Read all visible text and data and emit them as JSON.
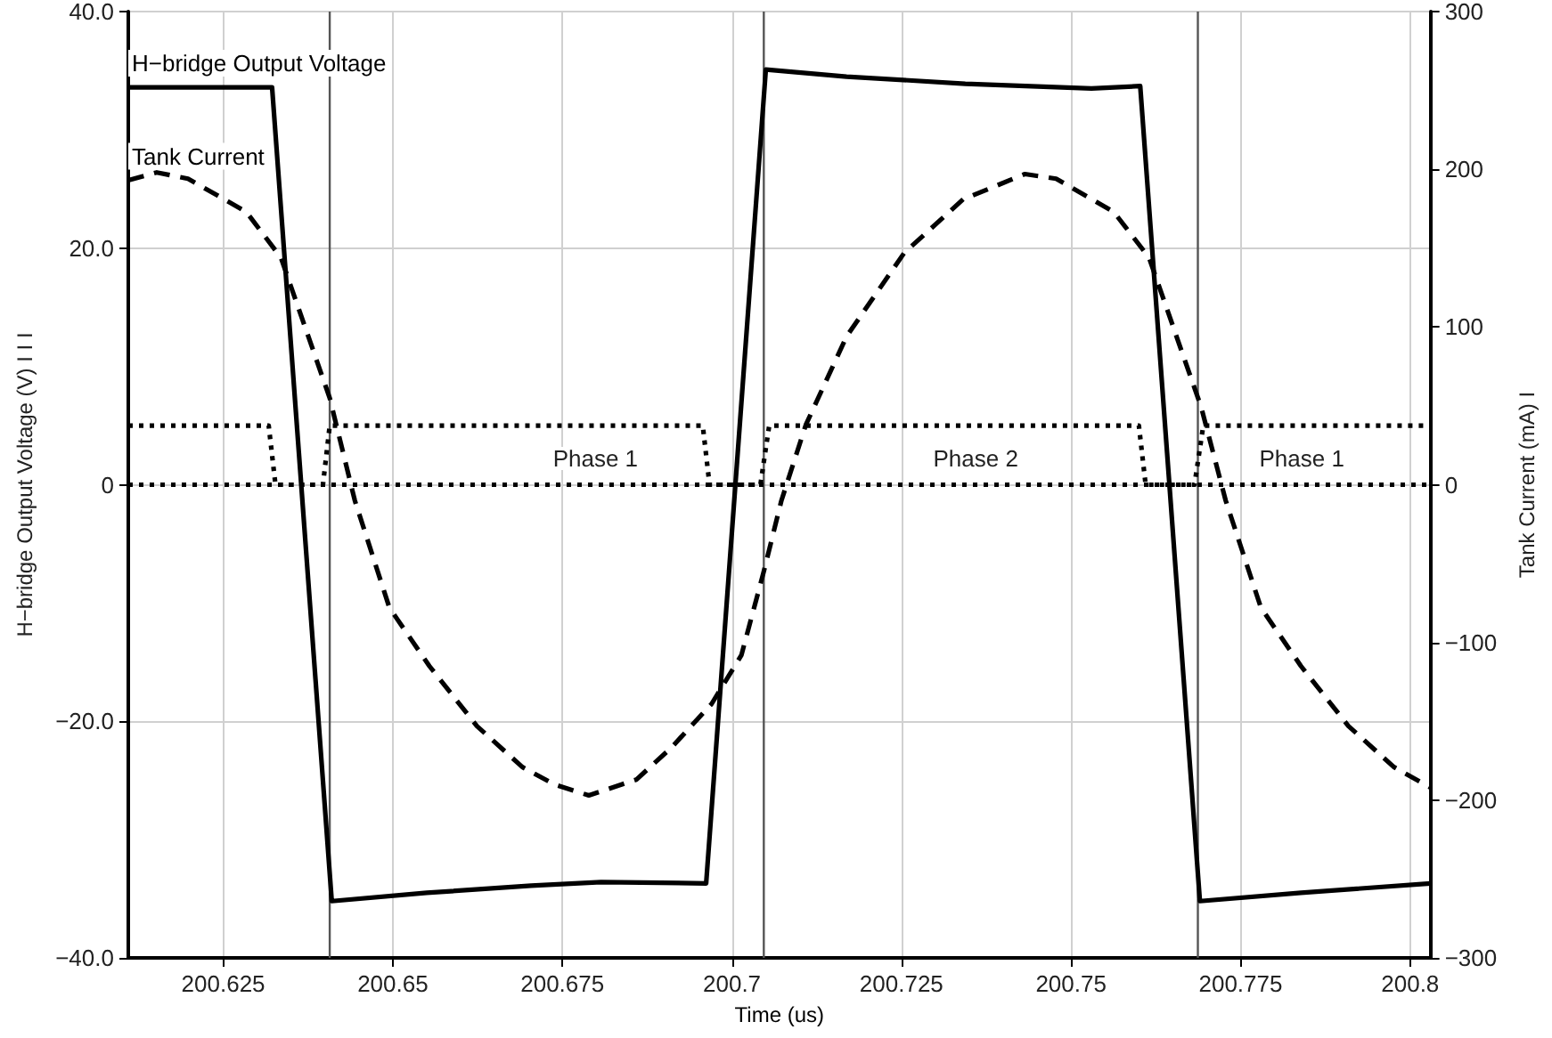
{
  "chart_data": {
    "type": "line",
    "xlabel": "Time (us)",
    "ylabel": "H−bridge Output Voltage (V) I I I",
    "y2label": "Tank Current (mA) I",
    "xlim": [
      200.611,
      200.803
    ],
    "xticks": [
      200.625,
      200.65,
      200.675,
      200.7,
      200.725,
      200.75,
      200.775,
      200.8
    ],
    "ylim": [
      -40,
      40
    ],
    "yticks": [
      {
        "value": -40,
        "label": "−40.0"
      },
      {
        "value": -20,
        "label": "−20.0"
      },
      0,
      {
        "value": 20,
        "label": "20.0"
      },
      {
        "value": 40,
        "label": "40.0"
      }
    ],
    "y2lim": [
      -300,
      300
    ],
    "y2ticks": [
      {
        "value": -300,
        "label": "−300"
      },
      {
        "value": -200,
        "label": "−200"
      },
      {
        "value": -100,
        "label": "−100"
      },
      0,
      100,
      200,
      300
    ],
    "grid": true,
    "legend": false,
    "marker": "none",
    "series": [
      {
        "name": "H−bridge Output Voltage",
        "color": "#000000",
        "line_style": "solid",
        "x": [
          200.611,
          200.6322,
          200.641,
          200.655,
          200.6704,
          200.6807,
          200.6962,
          200.705,
          200.7169,
          200.7344,
          200.753,
          200.7602,
          200.769,
          200.7839,
          200.803
        ],
        "values": [
          33.6,
          33.6,
          -35.2,
          -34.5,
          -33.9,
          -33.6,
          -33.7,
          35.1,
          34.5,
          33.9,
          33.5,
          33.7,
          -35.2,
          -34.5,
          -33.7
        ]
      },
      {
        "name": "Tank Current",
        "color": "#000000",
        "line_style": "dashed",
        "axis": "y2",
        "x": [
          200.611,
          200.6152,
          200.6198,
          200.6284,
          200.6335,
          200.6407,
          200.6444,
          200.6495,
          200.6554,
          200.6624,
          200.6691,
          200.6738,
          200.6789,
          200.6859,
          200.691,
          200.697,
          200.7014,
          200.7047,
          200.7073,
          200.7109,
          200.7169,
          200.7254,
          200.7341,
          200.7432,
          200.7478,
          200.7563,
          200.7615,
          200.7692,
          200.7728,
          200.778,
          200.7839,
          200.7909,
          200.7976,
          200.803
        ],
        "values": [
          193,
          198,
          194,
          173,
          144,
          55,
          -10,
          -78,
          -115,
          -153,
          -179,
          -190,
          -197,
          -187,
          -167,
          -139,
          -108,
          -55,
          -10,
          38,
          94,
          147,
          181,
          197,
          194,
          173,
          144,
          49,
          -10,
          -78,
          -115,
          -153,
          -179,
          -192
        ]
      },
      {
        "color": "#000000",
        "line_style": "dotted",
        "x": [
          200.611,
          200.6317,
          200.6327,
          200.6397,
          200.6407,
          200.6957,
          200.6967,
          200.7042,
          200.7055,
          200.76,
          200.761,
          200.7682,
          200.7695,
          200.803
        ],
        "values": [
          5,
          5,
          0,
          0,
          5,
          5,
          0,
          0,
          5,
          5,
          0,
          0,
          5,
          5
        ]
      },
      {
        "color": "#000000",
        "line_style": "dotted",
        "x": [
          200.611,
          200.803
        ],
        "values": [
          0,
          0
        ]
      }
    ],
    "ref_lines": [
      {
        "axis": "x",
        "value": 200.6407,
        "color": "#555555"
      },
      {
        "axis": "x",
        "value": 200.7047,
        "color": "#555555"
      },
      {
        "axis": "x",
        "value": 200.7687,
        "color": "#555555"
      }
    ],
    "annotations": [
      "Phase 1",
      "Phase 2",
      "Phase 1"
    ]
  }
}
